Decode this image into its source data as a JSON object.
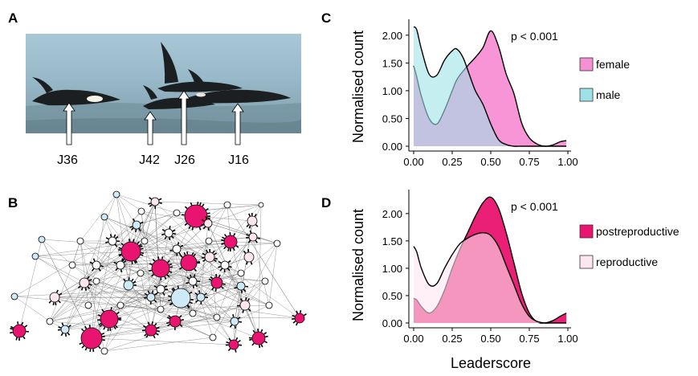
{
  "panels": {
    "a": "A",
    "b": "B",
    "c": "C",
    "d": "D"
  },
  "panel_a": {
    "whale_labels": [
      "J36",
      "J42",
      "J26",
      "J16"
    ]
  },
  "panel_b": {
    "node_colors": {
      "female_postreproductive": "#e8146f",
      "female_reproductive": "#fde6f0",
      "male": "#cfeaf7",
      "juvenile": "#ffffff"
    }
  },
  "chart_data": [
    {
      "type": "area",
      "panel": "C",
      "ylabel": "Normalised count",
      "xlabel": "",
      "annotation": "p < 0.001",
      "xlim": [
        0,
        1
      ],
      "ylim": [
        0,
        2.2
      ],
      "x_ticks": [
        "0.00",
        "0.25",
        "0.50",
        "0.75",
        "1.00"
      ],
      "y_ticks": [
        "0.00",
        "0.50",
        "1.00",
        "1.50",
        "2.00"
      ],
      "x": [
        0.0,
        0.02,
        0.05,
        0.1,
        0.15,
        0.2,
        0.25,
        0.28,
        0.32,
        0.36,
        0.4,
        0.45,
        0.5,
        0.55,
        0.6,
        0.65,
        0.7,
        0.75,
        0.8,
        0.85,
        0.9,
        0.95,
        0.99
      ],
      "series": [
        {
          "name": "female",
          "color": "#f78fd4",
          "values": [
            1.45,
            1.25,
            0.9,
            0.5,
            0.4,
            0.65,
            1.0,
            1.2,
            1.35,
            1.48,
            1.6,
            1.78,
            2.08,
            1.8,
            1.3,
            0.95,
            0.42,
            0.15,
            0.04,
            0.0,
            0.02,
            0.08,
            0.1
          ]
        },
        {
          "name": "male",
          "color": "#9fe2e6",
          "values": [
            2.15,
            2.1,
            1.75,
            1.3,
            1.28,
            1.55,
            1.72,
            1.75,
            1.6,
            1.3,
            1.0,
            0.75,
            0.4,
            0.12,
            0.03,
            0.0,
            0.0,
            0.0,
            0.0,
            0.0,
            0.0,
            0.0,
            0.0
          ]
        }
      ]
    },
    {
      "type": "area",
      "panel": "D",
      "ylabel": "Normalised count",
      "xlabel": "Leaderscore",
      "annotation": "p < 0.001",
      "xlim": [
        0,
        1
      ],
      "ylim": [
        0,
        2.35
      ],
      "x_ticks": [
        "0.00",
        "0.25",
        "0.50",
        "0.75",
        "1.00"
      ],
      "y_ticks": [
        "0.00",
        "0.50",
        "1.00",
        "1.50",
        "2.00"
      ],
      "x": [
        0.0,
        0.02,
        0.05,
        0.1,
        0.15,
        0.2,
        0.25,
        0.3,
        0.35,
        0.4,
        0.45,
        0.5,
        0.55,
        0.6,
        0.65,
        0.7,
        0.75,
        0.8,
        0.85,
        0.9,
        0.95,
        0.99
      ],
      "series": [
        {
          "name": "postreproductive",
          "color": "#e8146f",
          "values": [
            0.45,
            0.42,
            0.3,
            0.18,
            0.3,
            0.6,
            1.0,
            1.35,
            1.65,
            1.95,
            2.2,
            2.3,
            2.1,
            1.65,
            1.1,
            0.55,
            0.18,
            0.02,
            0.0,
            0.04,
            0.12,
            0.18
          ]
        },
        {
          "name": "reproductive",
          "color": "#fde6f0",
          "values": [
            1.4,
            1.3,
            1.0,
            0.7,
            0.72,
            1.0,
            1.25,
            1.45,
            1.55,
            1.62,
            1.65,
            1.6,
            1.4,
            1.05,
            0.7,
            0.35,
            0.12,
            0.03,
            0.0,
            0.0,
            0.0,
            0.0
          ]
        }
      ]
    }
  ]
}
